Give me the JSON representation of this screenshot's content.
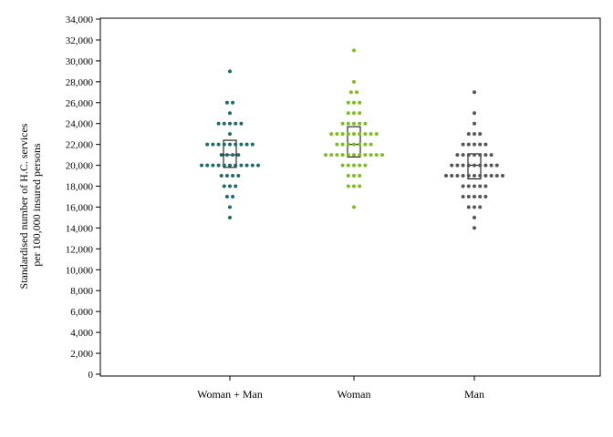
{
  "chart_data": {
    "type": "scatter",
    "title": "",
    "xlabel": "",
    "ylabel": "Standardised number of H.C. services per 100,000 insured persons",
    "ylabel_lines": [
      "Standardised number of H.C. services",
      "per 100,000 insured persons"
    ],
    "ylim": [
      0,
      34000
    ],
    "yticks": [
      0,
      2000,
      4000,
      6000,
      8000,
      10000,
      12000,
      14000,
      16000,
      18000,
      20000,
      22000,
      24000,
      26000,
      28000,
      30000,
      32000,
      34000
    ],
    "ytick_labels": [
      "0",
      "2,000",
      "4,000",
      "6,000",
      "8,000",
      "10,000",
      "12,000",
      "14,000",
      "16,000",
      "18,000",
      "20,000",
      "22,000",
      "24,000",
      "26,000",
      "28,000",
      "30,000",
      "32,000",
      "34,000"
    ],
    "categories": [
      "Woman + Man",
      "Woman",
      "Man"
    ],
    "grid": false,
    "legend": "none",
    "series": [
      {
        "category": "Woman + Man",
        "color": "#1f6b6b",
        "box": {
          "q1": 19800,
          "median": 21000,
          "q3": 22400
        },
        "points": [
          {
            "value": 29000,
            "count": 1
          },
          {
            "value": 26000,
            "count": 2
          },
          {
            "value": 25000,
            "count": 1
          },
          {
            "value": 24000,
            "count": 5
          },
          {
            "value": 23000,
            "count": 1
          },
          {
            "value": 22000,
            "count": 9
          },
          {
            "value": 21000,
            "count": 4
          },
          {
            "value": 20000,
            "count": 11
          },
          {
            "value": 19000,
            "count": 4
          },
          {
            "value": 18000,
            "count": 3
          },
          {
            "value": 17000,
            "count": 2
          },
          {
            "value": 16000,
            "count": 1
          },
          {
            "value": 15000,
            "count": 1
          }
        ]
      },
      {
        "category": "Woman",
        "color": "#7dbd1e",
        "box": {
          "q1": 20800,
          "median": 22000,
          "q3": 23700
        },
        "points": [
          {
            "value": 31000,
            "count": 1
          },
          {
            "value": 28000,
            "count": 1
          },
          {
            "value": 27000,
            "count": 2
          },
          {
            "value": 26000,
            "count": 3
          },
          {
            "value": 25000,
            "count": 3
          },
          {
            "value": 24000,
            "count": 5
          },
          {
            "value": 23000,
            "count": 9
          },
          {
            "value": 22000,
            "count": 7
          },
          {
            "value": 21000,
            "count": 11
          },
          {
            "value": 20000,
            "count": 5
          },
          {
            "value": 19000,
            "count": 3
          },
          {
            "value": 18000,
            "count": 3
          },
          {
            "value": 16000,
            "count": 1
          }
        ]
      },
      {
        "category": "Man",
        "color": "#555555",
        "box": {
          "q1": 18700,
          "median": 20000,
          "q3": 21100
        },
        "points": [
          {
            "value": 27000,
            "count": 1
          },
          {
            "value": 25000,
            "count": 1
          },
          {
            "value": 24000,
            "count": 1
          },
          {
            "value": 23000,
            "count": 3
          },
          {
            "value": 22000,
            "count": 5
          },
          {
            "value": 21000,
            "count": 7
          },
          {
            "value": 20000,
            "count": 9
          },
          {
            "value": 19000,
            "count": 11
          },
          {
            "value": 18000,
            "count": 5
          },
          {
            "value": 17000,
            "count": 5
          },
          {
            "value": 16000,
            "count": 3
          },
          {
            "value": 15000,
            "count": 1
          },
          {
            "value": 14000,
            "count": 1
          }
        ]
      }
    ]
  }
}
